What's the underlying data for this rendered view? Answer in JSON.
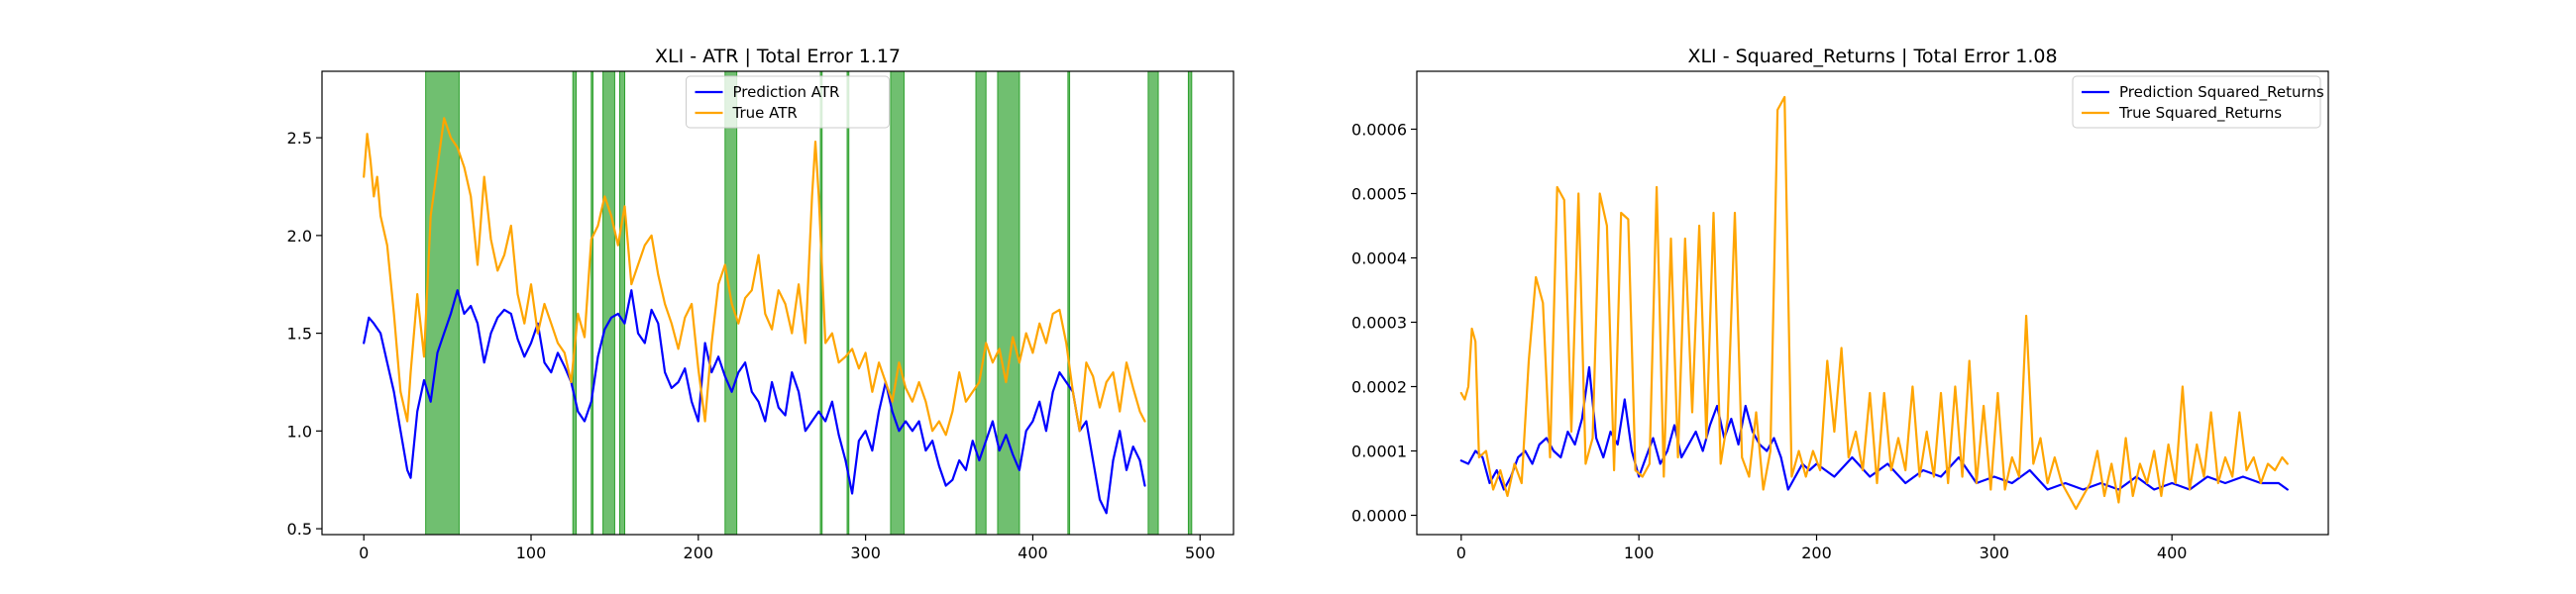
{
  "chart_data": [
    {
      "type": "line",
      "title": "XLI - ATR | Total Error 1.17",
      "xlabel": "",
      "ylabel": "",
      "xlim": [
        -25,
        520
      ],
      "ylim": [
        0.47,
        2.84
      ],
      "xticks": [
        0,
        100,
        200,
        300,
        400,
        500
      ],
      "yticks": [
        0.5,
        1.0,
        1.5,
        2.0,
        2.5
      ],
      "ytick_labels": [
        "0.5",
        "1.0",
        "1.5",
        "2.0",
        "2.5"
      ],
      "grid": false,
      "legend_position": "top-center",
      "highlight_color": "#2ca02c",
      "highlight_intervals": [
        [
          37,
          57
        ],
        [
          125,
          127
        ],
        [
          136,
          137
        ],
        [
          143,
          150
        ],
        [
          153,
          156
        ],
        [
          216,
          223
        ],
        [
          273,
          274
        ],
        [
          289,
          290
        ],
        [
          315,
          323
        ],
        [
          366,
          372
        ],
        [
          379,
          392
        ],
        [
          421,
          422
        ],
        [
          469,
          475
        ],
        [
          493,
          495
        ]
      ],
      "series": [
        {
          "name": "Prediction ATR",
          "color": "#0000ff",
          "x": [
            0,
            3,
            6,
            10,
            14,
            18,
            22,
            26,
            28,
            32,
            36,
            40,
            44,
            48,
            52,
            56,
            60,
            64,
            68,
            72,
            76,
            80,
            84,
            88,
            92,
            96,
            100,
            104,
            108,
            112,
            116,
            120,
            124,
            128,
            132,
            136,
            140,
            144,
            148,
            152,
            156,
            160,
            164,
            168,
            172,
            176,
            180,
            184,
            188,
            192,
            196,
            200,
            204,
            208,
            212,
            216,
            220,
            224,
            228,
            232,
            236,
            240,
            244,
            248,
            252,
            256,
            260,
            264,
            268,
            272,
            276,
            280,
            284,
            288,
            292,
            296,
            300,
            304,
            308,
            312,
            316,
            320,
            324,
            328,
            332,
            336,
            340,
            344,
            348,
            352,
            356,
            360,
            364,
            368,
            372,
            376,
            380,
            384,
            388,
            392,
            396,
            400,
            404,
            408,
            412,
            416,
            420,
            424,
            428,
            432,
            436,
            440,
            444,
            448,
            452,
            456,
            460,
            464,
            467
          ],
          "y": [
            1.45,
            1.58,
            1.55,
            1.5,
            1.35,
            1.2,
            1.0,
            0.8,
            0.76,
            1.1,
            1.26,
            1.15,
            1.4,
            1.5,
            1.6,
            1.72,
            1.6,
            1.64,
            1.55,
            1.35,
            1.5,
            1.58,
            1.62,
            1.6,
            1.47,
            1.38,
            1.45,
            1.55,
            1.35,
            1.3,
            1.4,
            1.33,
            1.25,
            1.1,
            1.05,
            1.15,
            1.38,
            1.52,
            1.58,
            1.6,
            1.55,
            1.72,
            1.5,
            1.45,
            1.62,
            1.55,
            1.3,
            1.22,
            1.25,
            1.32,
            1.15,
            1.05,
            1.45,
            1.3,
            1.38,
            1.28,
            1.2,
            1.3,
            1.35,
            1.2,
            1.15,
            1.05,
            1.25,
            1.12,
            1.08,
            1.3,
            1.2,
            1.0,
            1.05,
            1.1,
            1.05,
            1.15,
            0.98,
            0.85,
            0.68,
            0.95,
            1.0,
            0.9,
            1.1,
            1.25,
            1.1,
            1.0,
            1.05,
            1.0,
            1.05,
            0.9,
            0.95,
            0.82,
            0.72,
            0.75,
            0.85,
            0.8,
            0.95,
            0.85,
            0.95,
            1.05,
            0.9,
            0.98,
            0.88,
            0.8,
            1.0,
            1.05,
            1.15,
            1.0,
            1.2,
            1.3,
            1.25,
            1.2,
            1.0,
            1.05,
            0.85,
            0.65,
            0.58,
            0.85,
            1.0,
            0.8,
            0.92,
            0.85,
            0.72
          ]
        },
        {
          "name": "True ATR",
          "color": "#ffa500",
          "x": [
            0,
            2,
            4,
            6,
            8,
            10,
            14,
            18,
            22,
            26,
            28,
            32,
            36,
            40,
            44,
            48,
            52,
            56,
            60,
            64,
            68,
            72,
            76,
            80,
            84,
            88,
            92,
            96,
            100,
            104,
            108,
            112,
            116,
            120,
            124,
            128,
            132,
            136,
            140,
            144,
            148,
            152,
            156,
            160,
            164,
            168,
            172,
            176,
            180,
            184,
            188,
            192,
            196,
            200,
            204,
            208,
            212,
            216,
            220,
            224,
            228,
            232,
            236,
            240,
            244,
            248,
            252,
            256,
            260,
            264,
            268,
            270,
            272,
            276,
            280,
            284,
            288,
            292,
            296,
            300,
            304,
            308,
            312,
            316,
            320,
            324,
            328,
            332,
            336,
            340,
            344,
            348,
            352,
            356,
            360,
            364,
            368,
            372,
            376,
            380,
            384,
            388,
            392,
            396,
            400,
            404,
            408,
            412,
            416,
            420,
            424,
            428,
            432,
            436,
            440,
            444,
            448,
            452,
            456,
            460,
            464,
            467
          ],
          "y": [
            2.3,
            2.52,
            2.38,
            2.2,
            2.3,
            2.1,
            1.95,
            1.6,
            1.2,
            1.05,
            1.3,
            1.7,
            1.38,
            2.1,
            2.35,
            2.6,
            2.5,
            2.45,
            2.35,
            2.2,
            1.85,
            2.3,
            1.98,
            1.82,
            1.9,
            2.05,
            1.7,
            1.55,
            1.75,
            1.5,
            1.65,
            1.55,
            1.45,
            1.4,
            1.25,
            1.6,
            1.48,
            1.98,
            2.05,
            2.2,
            2.1,
            1.95,
            2.15,
            1.75,
            1.85,
            1.95,
            2.0,
            1.8,
            1.65,
            1.55,
            1.42,
            1.58,
            1.65,
            1.32,
            1.05,
            1.45,
            1.75,
            1.85,
            1.65,
            1.55,
            1.68,
            1.72,
            1.9,
            1.6,
            1.52,
            1.72,
            1.65,
            1.5,
            1.75,
            1.45,
            2.2,
            2.48,
            2.2,
            1.45,
            1.5,
            1.35,
            1.38,
            1.42,
            1.32,
            1.4,
            1.2,
            1.35,
            1.25,
            1.15,
            1.35,
            1.22,
            1.15,
            1.25,
            1.15,
            1.0,
            1.05,
            0.98,
            1.1,
            1.3,
            1.15,
            1.2,
            1.25,
            1.45,
            1.35,
            1.42,
            1.25,
            1.48,
            1.35,
            1.5,
            1.4,
            1.55,
            1.45,
            1.6,
            1.62,
            1.45,
            1.2,
            1.0,
            1.35,
            1.28,
            1.12,
            1.25,
            1.3,
            1.1,
            1.35,
            1.22,
            1.1,
            1.05
          ]
        }
      ]
    },
    {
      "type": "line",
      "title": "XLI - Squared_Returns | Total Error 1.08",
      "xlabel": "",
      "ylabel": "",
      "xlim": [
        -25,
        488
      ],
      "ylim": [
        -3e-05,
        0.00069
      ],
      "xticks": [
        0,
        100,
        200,
        300,
        400
      ],
      "yticks": [
        0.0,
        0.0001,
        0.0002,
        0.0003,
        0.0004,
        0.0005,
        0.0006
      ],
      "ytick_labels": [
        "0.0000",
        "0.0001",
        "0.0002",
        "0.0003",
        "0.0004",
        "0.0005",
        "0.0006"
      ],
      "grid": false,
      "legend_position": "top-right",
      "series": [
        {
          "name": "Prediction Squared_Returns",
          "color": "#0000ff",
          "x": [
            0,
            4,
            8,
            12,
            16,
            20,
            24,
            28,
            32,
            36,
            40,
            44,
            48,
            52,
            56,
            60,
            64,
            68,
            72,
            76,
            80,
            84,
            88,
            92,
            96,
            100,
            104,
            108,
            112,
            116,
            120,
            124,
            128,
            132,
            136,
            140,
            144,
            148,
            152,
            156,
            160,
            164,
            168,
            172,
            176,
            180,
            184,
            188,
            192,
            196,
            200,
            210,
            220,
            230,
            240,
            250,
            260,
            270,
            280,
            290,
            300,
            310,
            320,
            330,
            340,
            350,
            360,
            370,
            380,
            390,
            400,
            410,
            420,
            430,
            440,
            450,
            460,
            465
          ],
          "y": [
            8.5e-05,
            8e-05,
            0.0001,
            9e-05,
            5e-05,
            7e-05,
            4e-05,
            6e-05,
            9e-05,
            0.0001,
            8e-05,
            0.00011,
            0.00012,
            0.0001,
            9e-05,
            0.00013,
            0.00011,
            0.00015,
            0.00023,
            0.00012,
            9e-05,
            0.00013,
            0.00011,
            0.00018,
            0.0001,
            6e-05,
            9e-05,
            0.00012,
            8e-05,
            0.0001,
            0.00014,
            9e-05,
            0.00011,
            0.00013,
            0.0001,
            0.00014,
            0.00017,
            0.00012,
            0.00015,
            0.00011,
            0.00017,
            0.00013,
            0.00011,
            0.0001,
            0.00012,
            9e-05,
            4e-05,
            6e-05,
            8e-05,
            7e-05,
            8e-05,
            6e-05,
            9e-05,
            6e-05,
            8e-05,
            5e-05,
            7e-05,
            6e-05,
            9e-05,
            5e-05,
            6e-05,
            5e-05,
            7e-05,
            4e-05,
            5e-05,
            4e-05,
            5e-05,
            4e-05,
            6e-05,
            4e-05,
            5e-05,
            4e-05,
            6e-05,
            5e-05,
            6e-05,
            5e-05,
            5e-05,
            4e-05
          ]
        },
        {
          "name": "True Squared_Returns",
          "color": "#ffa500",
          "x": [
            0,
            2,
            4,
            6,
            8,
            10,
            14,
            18,
            22,
            26,
            30,
            34,
            38,
            42,
            46,
            50,
            54,
            58,
            62,
            66,
            70,
            74,
            78,
            82,
            86,
            90,
            94,
            98,
            102,
            106,
            110,
            114,
            118,
            122,
            126,
            130,
            134,
            138,
            142,
            146,
            150,
            154,
            158,
            162,
            166,
            170,
            174,
            178,
            182,
            186,
            190,
            194,
            198,
            202,
            206,
            210,
            214,
            218,
            222,
            226,
            230,
            234,
            238,
            242,
            246,
            250,
            254,
            258,
            262,
            266,
            270,
            274,
            278,
            282,
            286,
            290,
            294,
            298,
            302,
            306,
            310,
            314,
            318,
            322,
            326,
            330,
            334,
            338,
            342,
            346,
            350,
            354,
            358,
            362,
            366,
            370,
            374,
            378,
            382,
            386,
            390,
            394,
            398,
            402,
            406,
            410,
            414,
            418,
            422,
            426,
            430,
            434,
            438,
            442,
            446,
            450,
            454,
            458,
            462,
            465
          ],
          "y": [
            0.00019,
            0.00018,
            0.0002,
            0.00029,
            0.00027,
            9e-05,
            0.0001,
            4e-05,
            7e-05,
            3e-05,
            8e-05,
            5e-05,
            0.00024,
            0.00037,
            0.00033,
            9e-05,
            0.00051,
            0.00049,
            0.00013,
            0.0005,
            8e-05,
            0.00012,
            0.0005,
            0.00045,
            7e-05,
            0.00047,
            0.00046,
            7e-05,
            6e-05,
            8e-05,
            0.00051,
            6e-05,
            0.00043,
            9e-05,
            0.00043,
            0.00016,
            0.00045,
            0.00012,
            0.00047,
            8e-05,
            0.00015,
            0.00047,
            9e-05,
            6e-05,
            0.00016,
            4e-05,
            0.0001,
            0.00063,
            0.00065,
            6e-05,
            0.0001,
            6e-05,
            0.0001,
            7e-05,
            0.00024,
            0.00013,
            0.00026,
            9e-05,
            0.00013,
            7e-05,
            0.00019,
            5e-05,
            0.00019,
            7e-05,
            0.00012,
            7e-05,
            0.0002,
            6e-05,
            0.00013,
            6e-05,
            0.00019,
            5e-05,
            0.0002,
            6e-05,
            0.00024,
            5e-05,
            0.00017,
            4e-05,
            0.00019,
            4e-05,
            9e-05,
            6e-05,
            0.00031,
            8e-05,
            0.00012,
            5e-05,
            9e-05,
            5e-05,
            3e-05,
            1e-05,
            3e-05,
            5e-05,
            0.0001,
            3e-05,
            8e-05,
            2e-05,
            0.00012,
            3e-05,
            8e-05,
            5e-05,
            0.0001,
            3e-05,
            0.00011,
            5e-05,
            0.0002,
            4e-05,
            0.00011,
            6e-05,
            0.00016,
            5e-05,
            9e-05,
            6e-05,
            0.00016,
            7e-05,
            9e-05,
            5e-05,
            8e-05,
            7e-05,
            9e-05,
            8e-05
          ]
        }
      ]
    }
  ]
}
